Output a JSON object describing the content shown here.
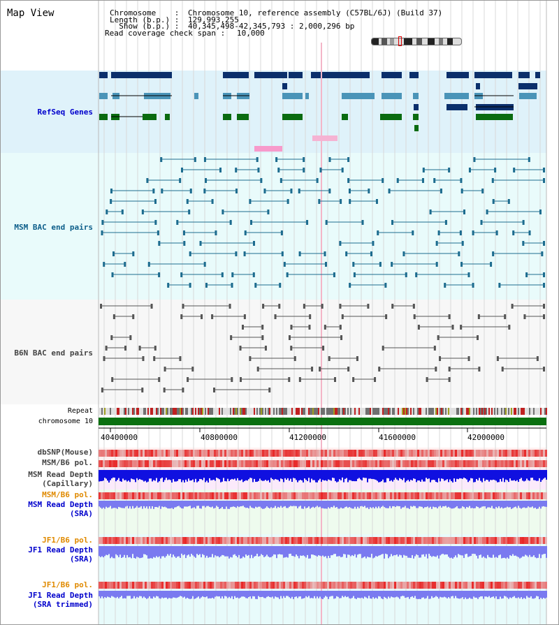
{
  "title": "Map View",
  "info": {
    "chromosome_label": "Chromosome    :",
    "chromosome_value": "Chromosome 10, reference assembly (C57BL/6J) (Build 37)",
    "length_label": "Length (b.p.) :",
    "length_value": "129,993,255",
    "show_label": "  Show (b.p.) :",
    "show_value": "40,345,498-42,345,793 : 2,000,296 bp",
    "span_label": "Read coverage check span :",
    "span_value": "10,000"
  },
  "tracks": {
    "refseq": "RefSeq Genes",
    "msm_bac": "MSM BAC end pairs",
    "b6n_bac": "B6N BAC end pairs",
    "repeat": "Repeat",
    "chromosome": "chromosome 10",
    "dbsnp": "dbSNP(Mouse)",
    "msm_pol_1": "MSM/B6 pol.",
    "msm_depth_cap_1": "MSM Read Depth",
    "msm_depth_cap_2": "(Capillary)",
    "msm_pol_2": "MSM/B6 pol.",
    "msm_depth_sra_1": "MSM Read Depth",
    "msm_depth_sra_2": "(SRA)",
    "jf1_pol_1": "JF1/B6 pol.",
    "jf1_depth_sra_1": "JF1 Read Depth",
    "jf1_depth_sra_2": "(SRA)",
    "jf1_pol_2": "JF1/B6 pol.",
    "jf1_depth_trim_1": "JF1 Read Depth",
    "jf1_depth_trim_2": "(SRA trimmed)"
  },
  "axis_ticks": [
    "40400000",
    "40800000",
    "41200000",
    "41600000",
    "42000000"
  ],
  "colors": {
    "refseq_bg": "#dff2fa",
    "msm_bac_bg": "#e9fbfb",
    "b6n_bac_bg": "#f7f7f7",
    "gene_dark": "#0b2f6b",
    "gene_teal": "#4a94b8",
    "gene_green": "#0a6b10",
    "bac_teal": "#1d6c8f",
    "bac_gray": "#555555",
    "chrom_green": "#0a7010",
    "snp_red": "#e84040",
    "depth_blue": "#1010e0",
    "sra_blue": "#7a7af0",
    "label_blue": "#0000cc",
    "label_orange": "#e08a00"
  }
}
